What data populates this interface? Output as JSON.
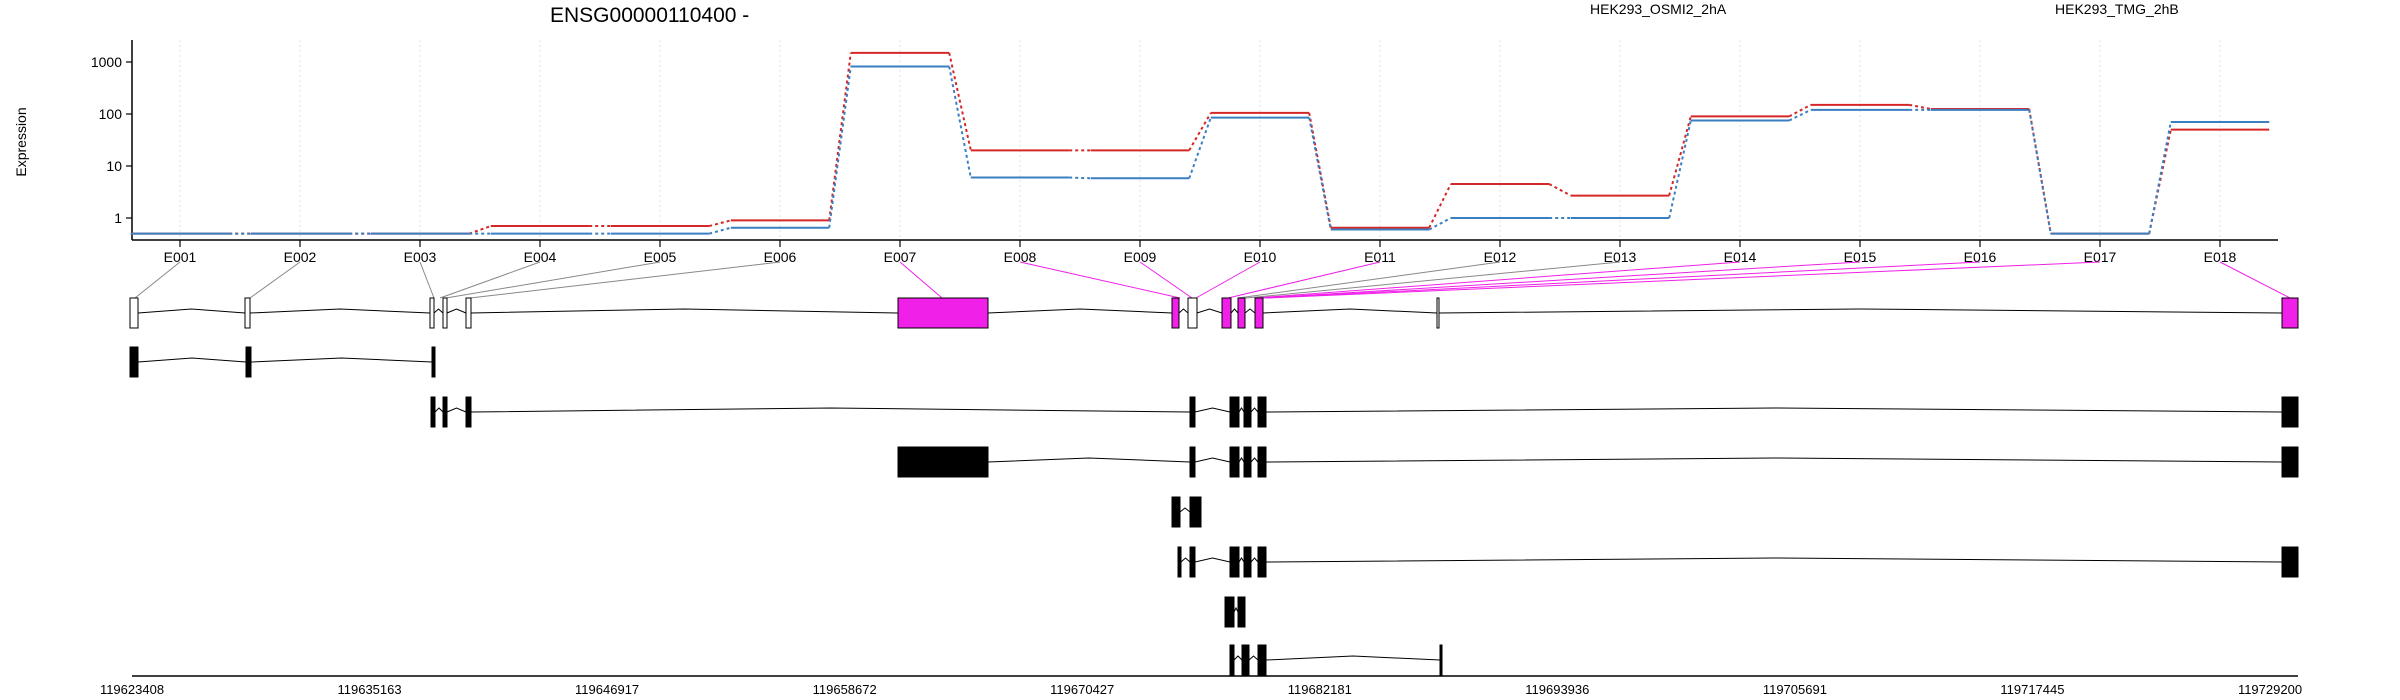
{
  "chart_data": {
    "type": "line",
    "title": "ENSG00000110400 -",
    "ylabel": "Expression",
    "yscale": "log",
    "ylim": [
      0.5,
      2000
    ],
    "y_ticks": [
      "1000",
      "100",
      "10",
      "1"
    ],
    "categories": [
      "E001",
      "E002",
      "E003",
      "E004",
      "E005",
      "E006",
      "E007",
      "E008",
      "E009",
      "E010",
      "E011",
      "E012",
      "E013",
      "E014",
      "E015",
      "E016",
      "E017",
      "E018"
    ],
    "series": [
      {
        "name": "HEK293_OSMI2_2hA",
        "color": "#d62728",
        "values": [
          0.5,
          0.5,
          0.5,
          0.7,
          0.7,
          0.9,
          1500,
          20,
          20,
          105,
          0.65,
          4.5,
          2.7,
          90,
          150,
          125,
          0.5,
          50
        ]
      },
      {
        "name": "HEK293_TMG_2hB",
        "color": "#3a7fc1",
        "values": [
          0.5,
          0.5,
          0.5,
          0.5,
          0.5,
          0.65,
          820,
          6,
          5.8,
          85,
          0.6,
          1,
          1,
          75,
          120,
          120,
          0.5,
          70
        ]
      }
    ],
    "grid": "vertical dotted",
    "legend_position": "top-right",
    "gene_model": {
      "coordinates": [
        "119623408",
        "119635163",
        "119646917",
        "119658672",
        "119670427",
        "119682181",
        "119693936",
        "119705691",
        "119717445",
        "119729200"
      ],
      "highlight_color": "#f020e8",
      "highlighted_exons": [
        "E007",
        "E009",
        "E010",
        "E018"
      ]
    }
  }
}
